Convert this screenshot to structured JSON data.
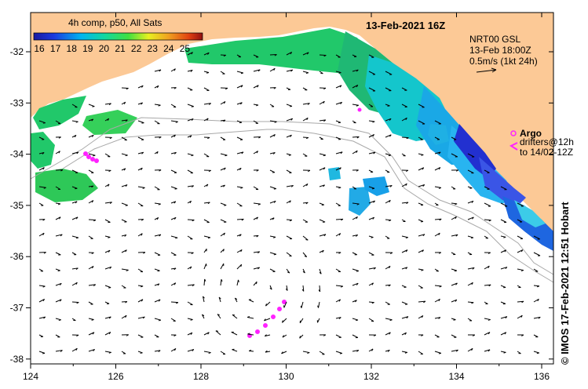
{
  "legend": {
    "title": "4h comp, p50, All Sats",
    "ticks": [
      "16",
      "17",
      "18",
      "19",
      "20",
      "21",
      "22",
      "23",
      "24",
      "25"
    ]
  },
  "header": {
    "date": "13-Feb-2021 16Z"
  },
  "currents_key": {
    "line1": "NRT00 GSL",
    "line2": "13-Feb 18:00Z",
    "line3": "0.5m/s (1kt 24h)"
  },
  "argo": {
    "title": "Argo",
    "line1": "drifters@12h",
    "line2": "to 14/02-12Z"
  },
  "credit": "© IMOS 17-Feb-2021 12:51 Hobart",
  "axes": {
    "x_ticks": [
      "124",
      "126",
      "128",
      "130",
      "132",
      "134",
      "136"
    ],
    "y_ticks": [
      "-32",
      "-33",
      "-34",
      "-35",
      "-36",
      "-37",
      "-38"
    ]
  },
  "colors": {
    "land": "#fcc996",
    "ocean": "#ffffff",
    "sst_cold": "#1a2fd6",
    "sst_mid": "#00c8e0",
    "sst_warm": "#22c870",
    "drifter": "#ff22ff",
    "isobath": "#a8a8a8"
  }
}
